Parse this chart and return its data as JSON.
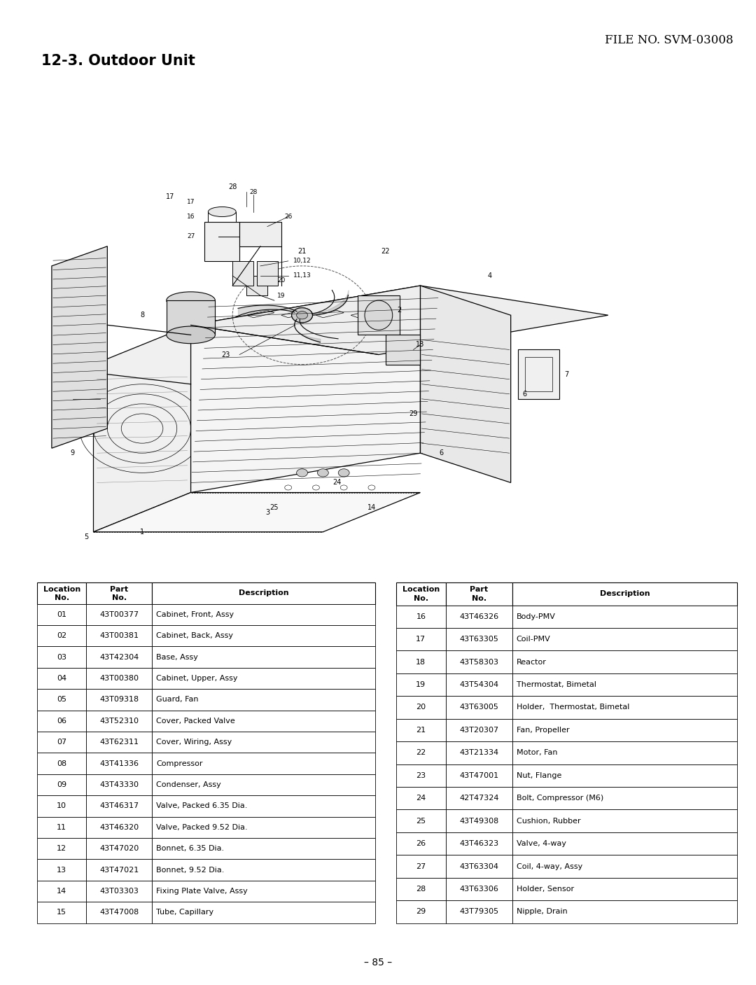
{
  "file_no": "FILE NO. SVM-03008",
  "section_title": "12-3. Outdoor Unit",
  "page_number": "– 85 –",
  "background_color": "#ffffff",
  "table_left": {
    "rows": [
      [
        "01",
        "43T00377",
        "Cabinet, Front, Assy"
      ],
      [
        "02",
        "43T00381",
        "Cabinet, Back, Assy"
      ],
      [
        "03",
        "43T42304",
        "Base, Assy"
      ],
      [
        "04",
        "43T00380",
        "Cabinet, Upper, Assy"
      ],
      [
        "05",
        "43T09318",
        "Guard, Fan"
      ],
      [
        "06",
        "43T52310",
        "Cover, Packed Valve"
      ],
      [
        "07",
        "43T62311",
        "Cover, Wiring, Assy"
      ],
      [
        "08",
        "43T41336",
        "Compressor"
      ],
      [
        "09",
        "43T43330",
        "Condenser, Assy"
      ],
      [
        "10",
        "43T46317",
        "Valve, Packed 6.35 Dia."
      ],
      [
        "11",
        "43T46320",
        "Valve, Packed 9.52 Dia."
      ],
      [
        "12",
        "43T47020",
        "Bonnet, 6.35 Dia."
      ],
      [
        "13",
        "43T47021",
        "Bonnet, 9.52 Dia."
      ],
      [
        "14",
        "43T03303",
        "Fixing Plate Valve, Assy"
      ],
      [
        "15",
        "43T47008",
        "Tube, Capillary"
      ]
    ]
  },
  "table_right": {
    "rows": [
      [
        "16",
        "43T46326",
        "Body-PMV"
      ],
      [
        "17",
        "43T63305",
        "Coil-PMV"
      ],
      [
        "18",
        "43T58303",
        "Reactor"
      ],
      [
        "19",
        "43T54304",
        "Thermostat, Bimetal"
      ],
      [
        "20",
        "43T63005",
        "Holder,  Thermostat, Bimetal"
      ],
      [
        "21",
        "43T20307",
        "Fan, Propeller"
      ],
      [
        "22",
        "43T21334",
        "Motor, Fan"
      ],
      [
        "23",
        "43T47001",
        "Nut, Flange"
      ],
      [
        "24",
        "42T47324",
        "Bolt, Compressor (M6)"
      ],
      [
        "25",
        "43T49308",
        "Cushion, Rubber"
      ],
      [
        "26",
        "43T46323",
        "Valve, 4-way"
      ],
      [
        "27",
        "43T63304",
        "Coil, 4-way, Assy"
      ],
      [
        "28",
        "43T63306",
        "Holder, Sensor"
      ],
      [
        "29",
        "43T79305",
        "Nipple, Drain"
      ]
    ]
  }
}
